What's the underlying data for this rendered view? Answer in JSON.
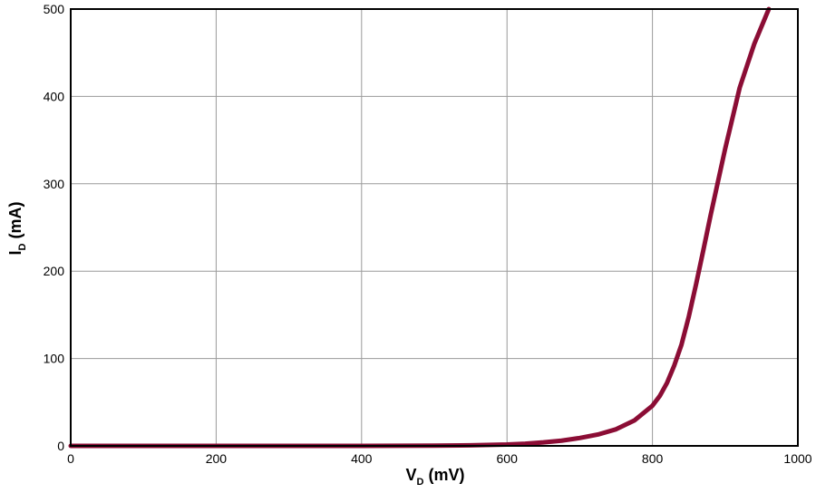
{
  "chart_data": {
    "type": "line",
    "title": "",
    "xlabel": {
      "main": "V",
      "sub": "D",
      "unit": " (mV)"
    },
    "ylabel": {
      "main": "I",
      "sub": "D",
      "unit": " (mA)"
    },
    "xlim": [
      0,
      1000
    ],
    "ylim": [
      0,
      500
    ],
    "xticks": [
      0,
      200,
      400,
      600,
      800,
      1000
    ],
    "yticks": [
      0,
      100,
      200,
      300,
      400,
      500
    ],
    "grid": true,
    "legend": "none",
    "series": [
      {
        "color": "#8b0d35",
        "x": [
          0,
          100,
          200,
          300,
          400,
          500,
          550,
          600,
          625,
          650,
          675,
          700,
          725,
          750,
          775,
          800,
          810,
          820,
          830,
          840,
          850,
          860,
          870,
          880,
          900,
          920,
          940,
          960
        ],
        "y": [
          0,
          0,
          0,
          0,
          0,
          0.2,
          0.6,
          1.5,
          2.5,
          4,
          6,
          9,
          13,
          19,
          29,
          46,
          57,
          72,
          92,
          116,
          148,
          185,
          224,
          264,
          340,
          410,
          460,
          500
        ]
      }
    ]
  }
}
